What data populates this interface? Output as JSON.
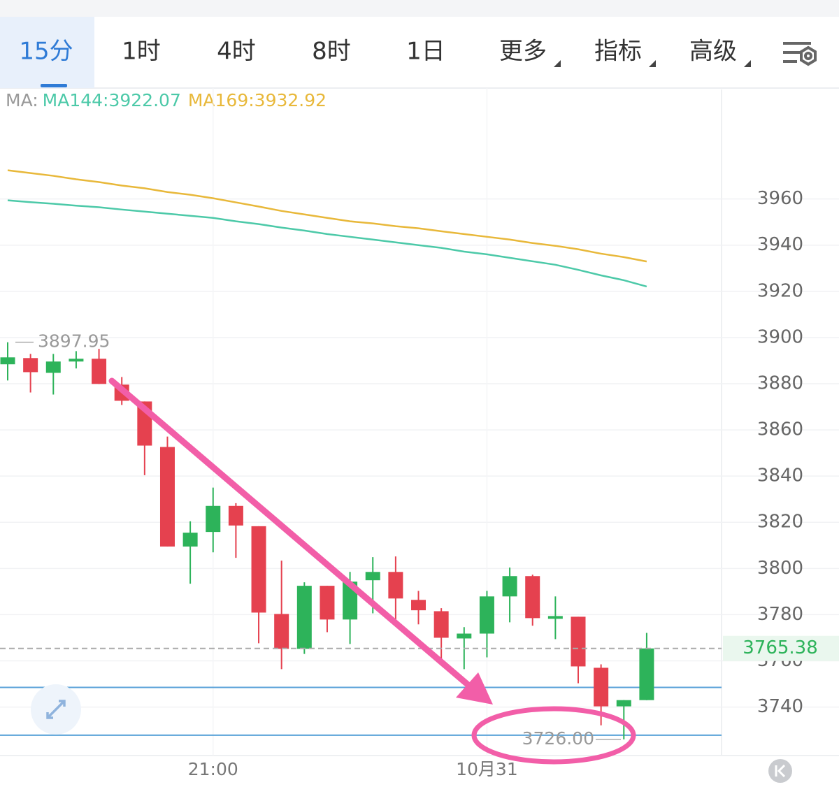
{
  "tabs": [
    "15分",
    "1时",
    "4时",
    "8时",
    "1日",
    "更多",
    "指标",
    "高级"
  ],
  "active_tab": 0,
  "chart_data": {
    "type": "candlestick",
    "ma_title": "MA:",
    "categories": [
      null,
      null,
      null,
      null,
      null,
      null,
      null,
      null,
      null,
      "21:00",
      null,
      null,
      null,
      null,
      null,
      null,
      null,
      null,
      null,
      null,
      null,
      "10月31",
      null,
      null,
      null,
      null,
      null,
      null,
      null
    ],
    "open": [
      3888.4,
      3891.1,
      3884.7,
      3889.6,
      3890.8,
      3879.6,
      3872.3,
      3852.6,
      3809.5,
      3815.8,
      3827.1,
      3818.3,
      3780.3,
      3765.2,
      3792.5,
      3777.9,
      3794.9,
      3798.5,
      3786.4,
      3781.5,
      3769.7,
      3771.8,
      3787.9,
      3796.7,
      3778.2,
      3779.1,
      3757.0,
      3740.3,
      3743.0
    ],
    "high": [
      3897.95,
      3892.9,
      3892.9,
      3894.1,
      3895.1,
      3882.9,
      3872.3,
      3857.1,
      3820.4,
      3835.0,
      3828.3,
      3818.3,
      3803.4,
      3794.0,
      3792.5,
      3798.5,
      3804.9,
      3805.2,
      3790.3,
      3782.8,
      3774.6,
      3790.3,
      3800.4,
      3797.3,
      3787.9,
      3779.1,
      3758.5,
      3743.0,
      3772.1
    ],
    "low": [
      3881.4,
      3876.2,
      3875.3,
      3886.6,
      3879.9,
      3870.8,
      3840.4,
      3809.5,
      3793.4,
      3807.0,
      3804.6,
      3767.6,
      3756.4,
      3763.0,
      3772.4,
      3767.3,
      3780.6,
      3777.0,
      3775.8,
      3760.0,
      3756.4,
      3761.5,
      3776.7,
      3775.2,
      3769.4,
      3750.3,
      3732.1,
      3726.0,
      3743.0
    ],
    "close": [
      3891.4,
      3885.0,
      3889.6,
      3890.8,
      3879.9,
      3872.6,
      3853.2,
      3809.5,
      3815.5,
      3827.1,
      3818.6,
      3780.9,
      3765.2,
      3792.5,
      3777.9,
      3794.3,
      3798.5,
      3787.0,
      3781.9,
      3770.0,
      3771.8,
      3787.9,
      3796.7,
      3778.5,
      3779.4,
      3757.6,
      3740.3,
      3743.0,
      3765.38
    ],
    "up_color": "#2db35a",
    "down_color": "#e5414f",
    "series": [
      {
        "name": "MA144:3922.07",
        "color": "#4cc9a8",
        "values": [
          3959.4,
          3958.6,
          3957.9,
          3957.1,
          3956.4,
          3955.4,
          3954.5,
          3953.6,
          3952.7,
          3951.8,
          3950.3,
          3949.1,
          3947.6,
          3946.3,
          3944.8,
          3943.6,
          3942.4,
          3941.2,
          3940.0,
          3938.8,
          3937.2,
          3936.0,
          3934.5,
          3933.0,
          3931.5,
          3929.3,
          3926.9,
          3924.8,
          3922.07
        ]
      },
      {
        "name": "MA169:3932.92",
        "color": "#e8b83a",
        "values": [
          3972.4,
          3971.2,
          3970.0,
          3968.5,
          3967.3,
          3965.8,
          3964.6,
          3963.0,
          3961.8,
          3960.3,
          3958.5,
          3956.7,
          3954.8,
          3953.3,
          3951.8,
          3950.3,
          3949.4,
          3948.2,
          3947.3,
          3946.0,
          3944.8,
          3943.6,
          3942.4,
          3940.9,
          3939.7,
          3938.2,
          3936.3,
          3934.8,
          3932.92
        ]
      }
    ],
    "ylim": [
      3719,
      4008
    ],
    "yticks": [
      3740,
      3760,
      3780,
      3800,
      3820,
      3840,
      3860,
      3880,
      3900,
      3920,
      3940,
      3960
    ],
    "grid": true,
    "last_price": 3765.38,
    "max_label": 3897.95,
    "min_label": {
      "value": 3726,
      "label": "3726.00"
    },
    "hlines": [
      3748.5,
      3727.8
    ]
  }
}
